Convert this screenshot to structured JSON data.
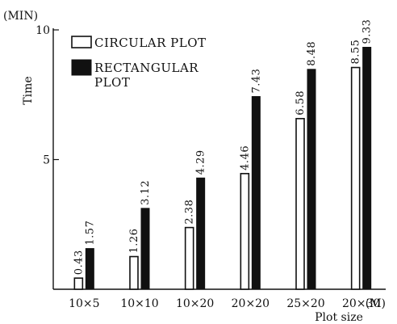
{
  "chart_data": {
    "type": "bar",
    "unit_label": "(MIN)",
    "ylabel": "Time",
    "xlabel": "Plot size",
    "x_unit": "(M)",
    "ylim": [
      0,
      10
    ],
    "yticks": [
      {
        "value": 5,
        "label": "5"
      },
      {
        "value": 10,
        "label": "10"
      }
    ],
    "categories": [
      "10×5",
      "10×10",
      "10×20",
      "20×20",
      "25×20",
      "20×30"
    ],
    "series": [
      {
        "name": "CIRCULAR PLOT",
        "values": [
          0.43,
          1.26,
          2.38,
          4.46,
          6.58,
          8.55
        ],
        "color": "#ffffff"
      },
      {
        "name": "RECTANGULAR PLOT",
        "values": [
          1.57,
          3.12,
          4.29,
          7.43,
          8.48,
          9.33
        ],
        "color": "#111111"
      }
    ],
    "data_labels": [
      [
        "0.43",
        "1.26",
        "2.38",
        "4.46",
        "6.58",
        "8.55"
      ],
      [
        "1.57",
        "3.12",
        "4.29",
        "7.43",
        "8.48",
        "9.33"
      ]
    ],
    "legend_position": "top-left",
    "legend_lines": {
      "circular": [
        "CIRCULAR  PLOT"
      ],
      "rectangular": [
        "RECTANGULAR",
        "PLOT"
      ]
    },
    "grid": false
  }
}
